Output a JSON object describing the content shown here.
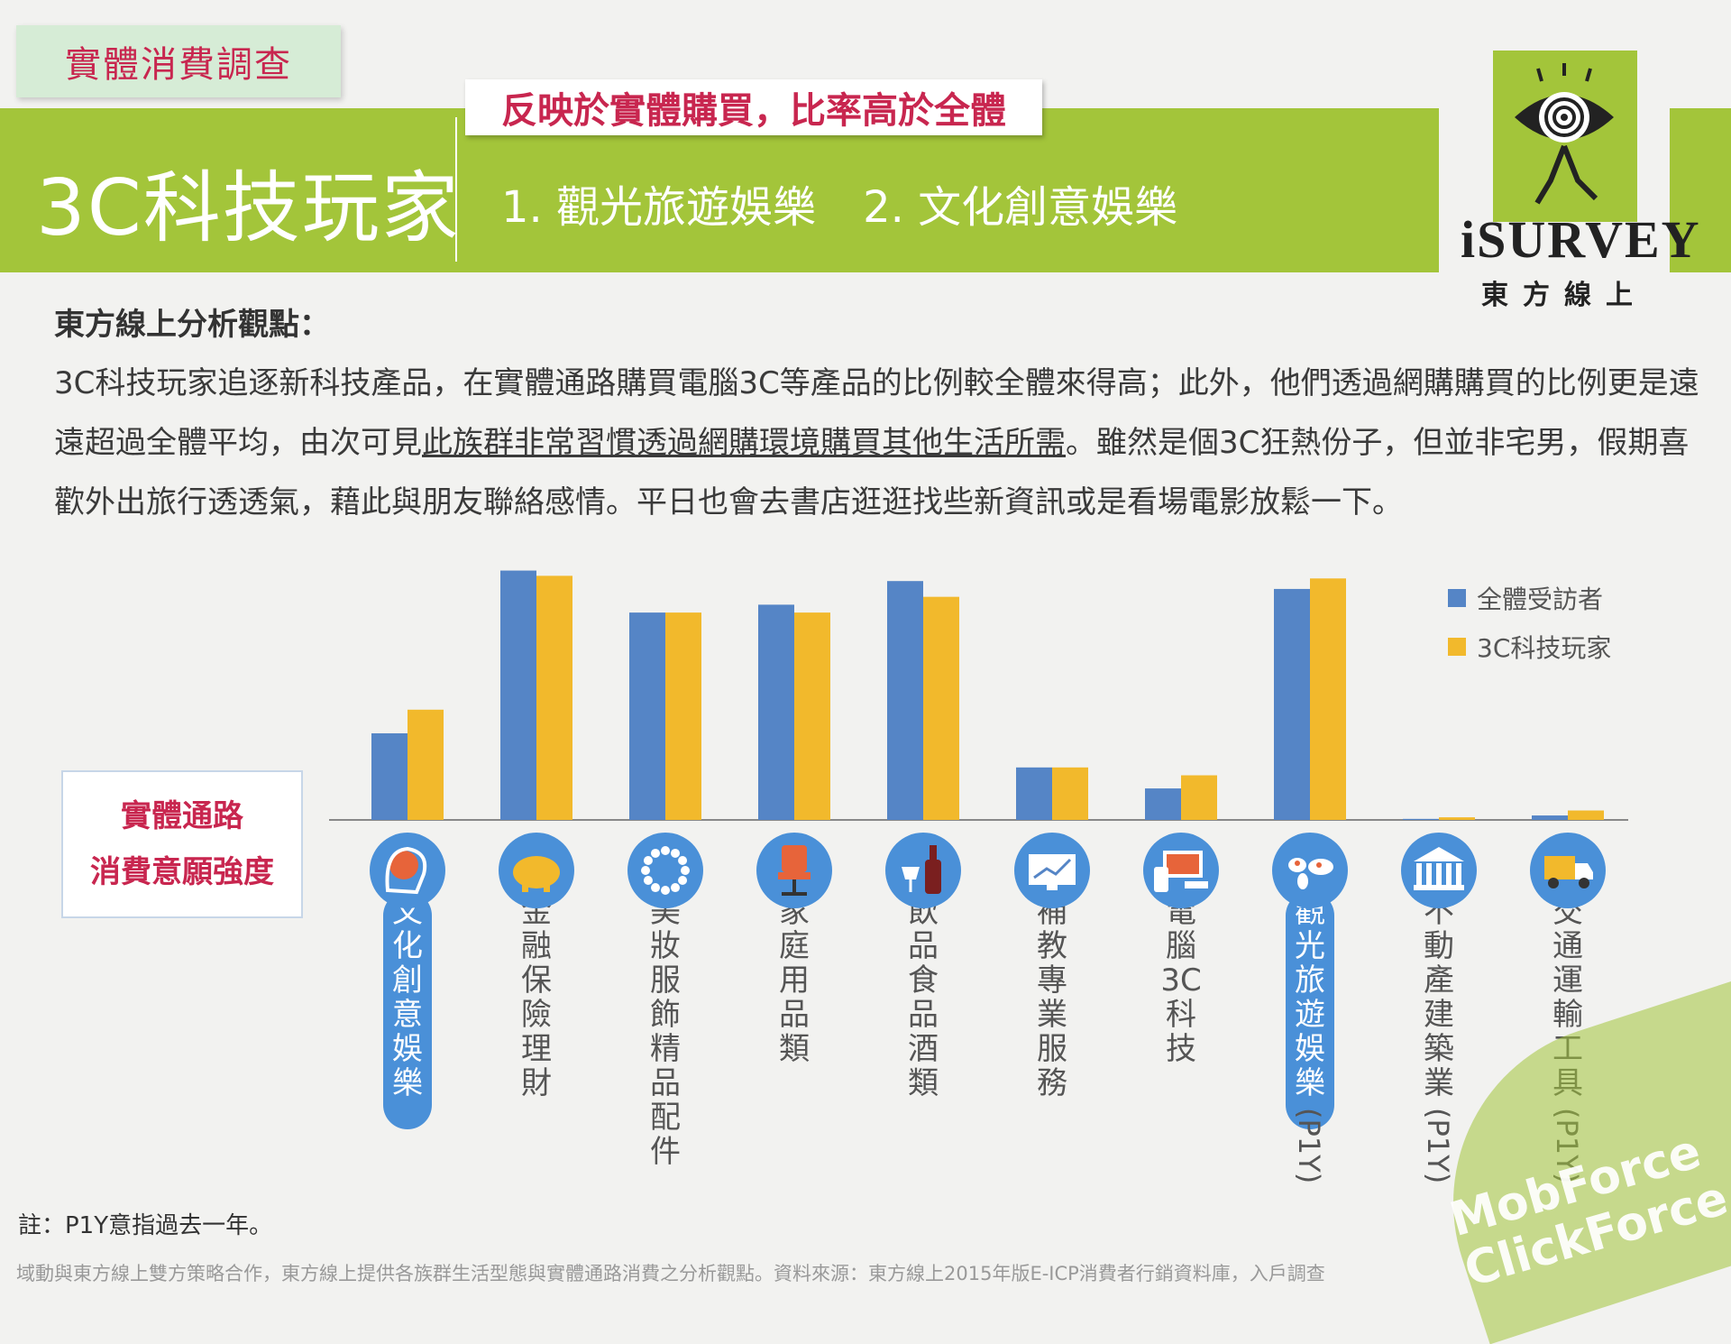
{
  "header": {
    "tag": "實體消費調查",
    "title": "3C科技玩家",
    "subtitle": "反映於實體購買，比率高於全體",
    "items": [
      "1. 觀光旅遊娛樂",
      "2. 文化創意娛樂"
    ]
  },
  "logo": {
    "word": "iSURVEY",
    "sub": "東方線上"
  },
  "analysis": {
    "heading": "東方線上分析觀點：",
    "text_part1": "3C科技玩家追逐新科技產品，在實體通路購買電腦3C等產品的比例較全體來得高；此外，他們透過網購購買的比例更是遠遠超過全體平均，由次可見",
    "text_underlined": "此族群非常習慣透過網購環境購買其他生活所需",
    "text_part2": "。雖然是個3C狂熱份子，但並非宅男，假期喜歡外出旅行透透氣，藉此與朋友聯絡感情。平日也會去書店逛逛找些新資訊或是看場電影放鬆一下。"
  },
  "side_label": {
    "line1": "實體通路",
    "line2": "消費意願強度"
  },
  "note": "註：P1Y意指過去一年。",
  "footer": "域動與東方線上雙方策略合作，東方線上提供各族群生活型態與實體通路消費之分析觀點。資料來源：東方線上2015年版E-ICP消費者行銷資料庫，入戶調查",
  "watermark": {
    "line1": "MobForce",
    "line2": "ClickForce"
  },
  "colors": {
    "blue": "#5585c6",
    "yellow": "#f2b92c",
    "green": "#a3c53a",
    "highlight": "#4a90d8",
    "icon": "#4a90d8"
  },
  "chart_data": {
    "type": "bar",
    "categories": [
      "文化創意娛樂",
      "金融保險理財",
      "美妝服飾精品配件",
      "家庭用品類",
      "飲品食品酒類",
      "補教專業服務",
      "電腦3C科技",
      "觀光旅遊娛樂(P1Y)",
      "不動產建築業(P1Y)",
      "交通運輸工具(P1Y)"
    ],
    "icons": [
      "brain-icon",
      "piggy-bank-icon",
      "necklace-icon",
      "office-chair-icon",
      "wine-bottle-icon",
      "chart-screen-icon",
      "devices-icon",
      "world-map-icon",
      "bank-building-icon",
      "truck-icon"
    ],
    "highlighted": [
      0,
      7
    ],
    "series": [
      {
        "name": "全體受訪者",
        "values": [
          33,
          95,
          79,
          82,
          91,
          20,
          12,
          88,
          0.4,
          1.7
        ]
      },
      {
        "name": "3C科技玩家",
        "values": [
          42,
          93,
          79,
          79,
          85,
          20,
          17,
          92,
          1.0,
          3.6
        ]
      }
    ],
    "ylim": [
      0,
      100
    ],
    "axis_labels": "none",
    "legend_position": "top-right"
  }
}
